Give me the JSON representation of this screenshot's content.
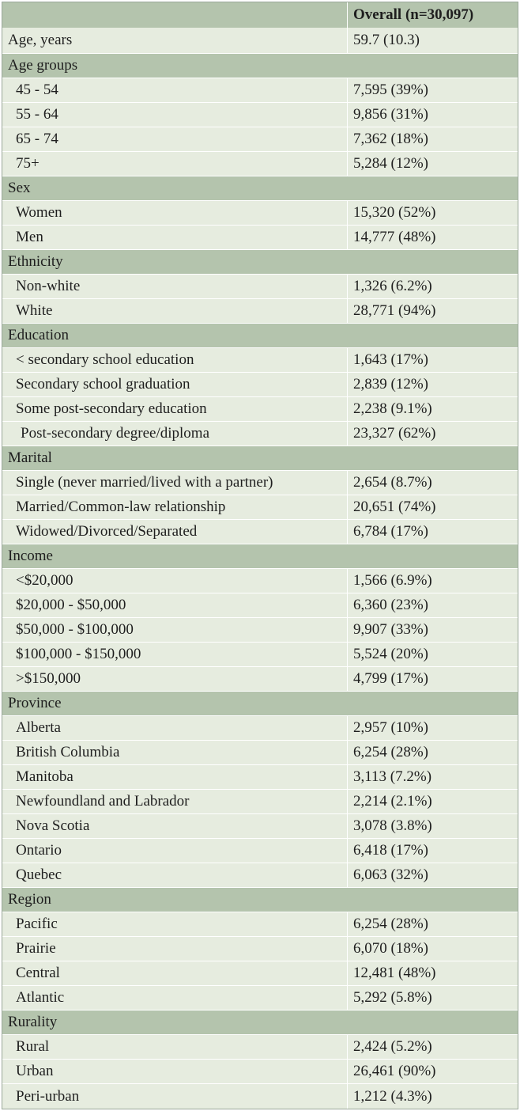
{
  "header": {
    "col1": "",
    "col2": "Overall (n=30,097)"
  },
  "rows": [
    {
      "type": "plain",
      "label": "Age, years",
      "value": "59.7 (10.3)"
    },
    {
      "type": "cat",
      "label": "Age groups"
    },
    {
      "type": "data",
      "label": "45 - 54",
      "value": "7,595 (39%)"
    },
    {
      "type": "data",
      "label": "55 - 64",
      "value": "9,856 (31%)"
    },
    {
      "type": "data",
      "label": "65 - 74",
      "value": "7,362 (18%)"
    },
    {
      "type": "data",
      "label": "75+",
      "value": "5,284 (12%)"
    },
    {
      "type": "cat",
      "label": "Sex"
    },
    {
      "type": "data",
      "label": "Women",
      "value": "15,320 (52%)"
    },
    {
      "type": "data",
      "label": "Men",
      "value": "14,777 (48%)"
    },
    {
      "type": "cat",
      "label": "Ethnicity"
    },
    {
      "type": "data",
      "label": "Non-white",
      "value": "1,326 (6.2%)"
    },
    {
      "type": "data",
      "label": "White",
      "value": "28,771 (94%)"
    },
    {
      "type": "cat",
      "label": "Education"
    },
    {
      "type": "data",
      "label": "< secondary school education",
      "value": "1,643 (17%)"
    },
    {
      "type": "data",
      "label": "Secondary school graduation",
      "value": "2,839 (12%)"
    },
    {
      "type": "data",
      "label": "Some post-secondary education",
      "value": "2,238 (9.1%)"
    },
    {
      "type": "data extra",
      "label": "Post-secondary degree/diploma",
      "value": "23,327 (62%)"
    },
    {
      "type": "cat",
      "label": "Marital"
    },
    {
      "type": "data",
      "label": "Single (never married/lived with a partner)",
      "value": "2,654 (8.7%)"
    },
    {
      "type": "data",
      "label": "Married/Common-law relationship",
      "value": "20,651 (74%)"
    },
    {
      "type": "data",
      "label": "Widowed/Divorced/Separated",
      "value": "6,784 (17%)"
    },
    {
      "type": "cat",
      "label": "Income"
    },
    {
      "type": "data",
      "label": "<$20,000",
      "value": "1,566 (6.9%)"
    },
    {
      "type": "data",
      "label": "$20,000 - $50,000",
      "value": "6,360 (23%)"
    },
    {
      "type": "data",
      "label": "$50,000 - $100,000",
      "value": "9,907 (33%)"
    },
    {
      "type": "data",
      "label": "$100,000 - $150,000",
      "value": "5,524 (20%)"
    },
    {
      "type": "data",
      "label": ">$150,000",
      "value": "4,799 (17%)"
    },
    {
      "type": "cat",
      "label": "Province"
    },
    {
      "type": "data",
      "label": "Alberta",
      "value": "2,957 (10%)"
    },
    {
      "type": "data",
      "label": "British Columbia",
      "value": "6,254 (28%)"
    },
    {
      "type": "data",
      "label": "Manitoba",
      "value": "3,113 (7.2%)"
    },
    {
      "type": "data",
      "label": "Newfoundland and Labrador",
      "value": "2,214 (2.1%)"
    },
    {
      "type": "data",
      "label": "Nova Scotia",
      "value": "3,078 (3.8%)"
    },
    {
      "type": "data",
      "label": "Ontario",
      "value": "6,418 (17%)"
    },
    {
      "type": "data",
      "label": "Quebec",
      "value": "6,063 (32%)"
    },
    {
      "type": "cat",
      "label": "Region"
    },
    {
      "type": "data",
      "label": "Pacific",
      "value": "6,254 (28%)"
    },
    {
      "type": "data",
      "label": "Prairie",
      "value": "6,070 (18%)"
    },
    {
      "type": "data",
      "label": "Central",
      "value": "12,481 (48%)"
    },
    {
      "type": "data",
      "label": "Atlantic",
      "value": "5,292 (5.8%)"
    },
    {
      "type": "cat",
      "label": "Rurality"
    },
    {
      "type": "data",
      "label": "Rural",
      "value": "2,424 (5.2%)"
    },
    {
      "type": "data",
      "label": "Urban",
      "value": "26,461 (90%)"
    },
    {
      "type": "data",
      "label": "Peri-urban",
      "value": "1,212 (4.3%)"
    }
  ],
  "colors": {
    "header_bg": "#b4c4ad",
    "category_bg": "#b4c4ad",
    "row_bg": "#e6ecdf",
    "text": "#1e1e1e"
  }
}
